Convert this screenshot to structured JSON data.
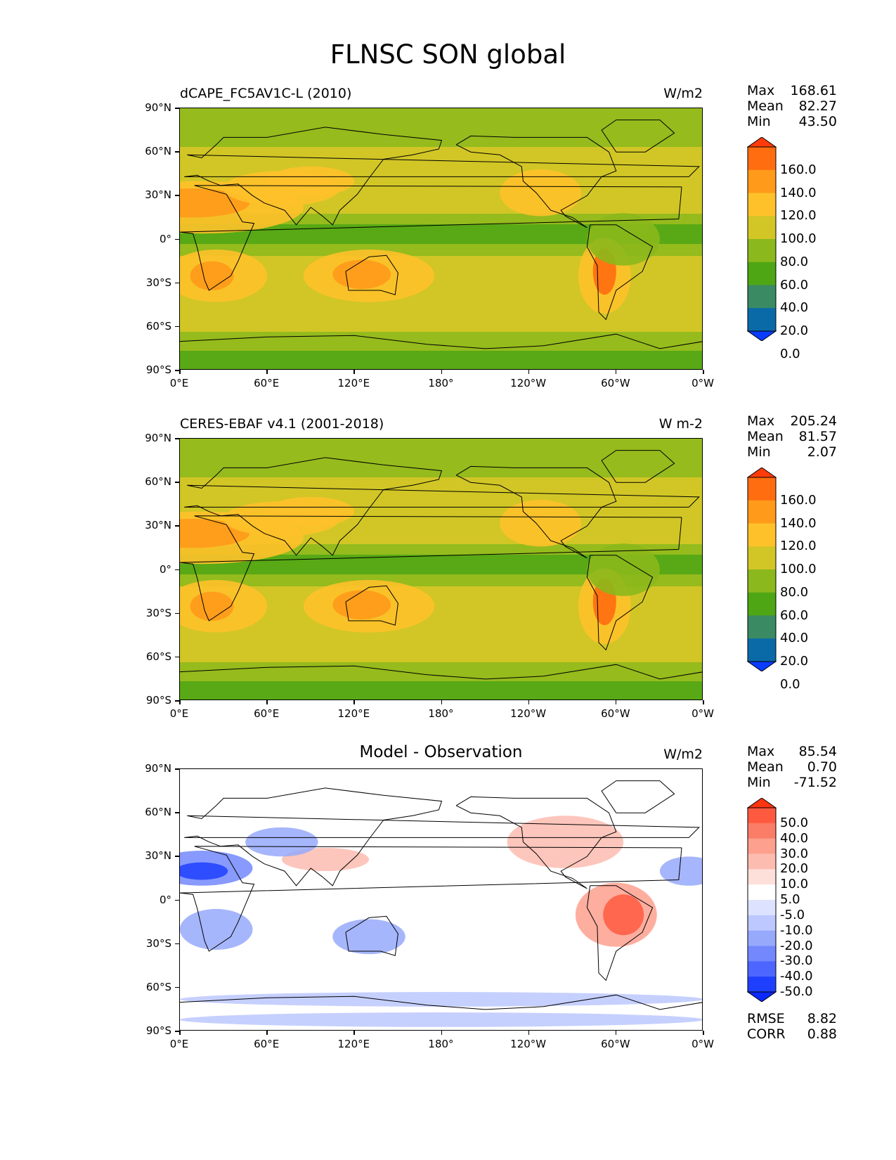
{
  "title": "FLNSC SON global",
  "lat_ticks": [
    "90°N",
    "60°N",
    "30°N",
    "0°",
    "30°S",
    "60°S",
    "90°S"
  ],
  "lon_ticks": [
    "0°E",
    "60°E",
    "120°E",
    "180°",
    "120°W",
    "60°W",
    "0°W"
  ],
  "panels": [
    {
      "left_label": "dCAPE_FC5AV1C-L (2010)",
      "center_label": "",
      "units": "W/m2",
      "stats": [
        {
          "label": "Max",
          "value": "168.61"
        },
        {
          "label": "Mean",
          "value": "82.27"
        },
        {
          "label": "Min",
          "value": "43.50"
        }
      ],
      "colorbar": {
        "labels": [
          "160.0",
          "140.0",
          "120.0",
          "100.0",
          "80.0",
          "60.0",
          "40.0",
          "20.0",
          "0.0"
        ],
        "colors": [
          "#ff3b0a",
          "#ff6d10",
          "#ff9a1a",
          "#fec12a",
          "#d2c626",
          "#8bb81c",
          "#4ea614",
          "#3a8a64",
          "#0a6aa8",
          "#0a3cff"
        ]
      },
      "footer": []
    },
    {
      "left_label": "CERES-EBAF v4.1 (2001-2018)",
      "center_label": "",
      "units": "W m-2",
      "stats": [
        {
          "label": "Max",
          "value": "205.24"
        },
        {
          "label": "Mean",
          "value": "81.57"
        },
        {
          "label": "Min",
          "value": "2.07"
        }
      ],
      "colorbar": {
        "labels": [
          "160.0",
          "140.0",
          "120.0",
          "100.0",
          "80.0",
          "60.0",
          "40.0",
          "20.0",
          "0.0"
        ],
        "colors": [
          "#ff3b0a",
          "#ff6d10",
          "#ff9a1a",
          "#fec12a",
          "#d2c626",
          "#8bb81c",
          "#4ea614",
          "#3a8a64",
          "#0a6aa8",
          "#0a3cff"
        ]
      },
      "footer": []
    },
    {
      "left_label": "",
      "center_label": "Model - Observation",
      "units": "W/m2",
      "stats": [
        {
          "label": "Max",
          "value": "85.54"
        },
        {
          "label": "Mean",
          "value": "0.70"
        },
        {
          "label": "Min",
          "value": "-71.52"
        }
      ],
      "colorbar": {
        "labels": [
          "50.0",
          "40.0",
          "30.0",
          "20.0",
          "10.0",
          "5.0",
          "-5.0",
          "-10.0",
          "-20.0",
          "-30.0",
          "-40.0",
          "-50.0"
        ],
        "colors": [
          "#ff3510",
          "#ff5a40",
          "#fb7d68",
          "#fda08e",
          "#fdbcb0",
          "#fde0da",
          "#ffffff",
          "#dde3ff",
          "#bcc8ff",
          "#97a9fb",
          "#7388fd",
          "#4d66ff",
          "#1f3fff",
          "#0a28ff"
        ]
      },
      "footer": [
        {
          "label": "RMSE",
          "value": "8.82"
        },
        {
          "label": "CORR",
          "value": "0.88"
        }
      ]
    }
  ]
}
